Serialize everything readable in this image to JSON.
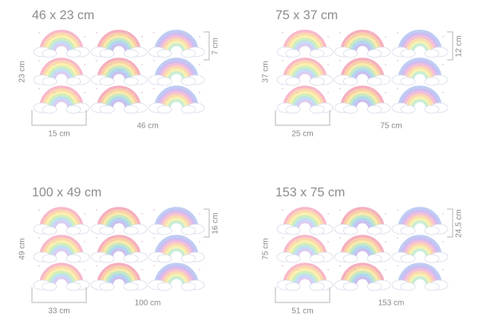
{
  "panels": [
    {
      "title": "46 x 23 cm",
      "total_height": "23 cm",
      "item_height": "7 cm",
      "item_width": "15 cm",
      "total_width": "46 cm"
    },
    {
      "title": "75 x 37 cm",
      "total_height": "37 cm",
      "item_height": "12 cm",
      "item_width": "25 cm",
      "total_width": "75 cm"
    },
    {
      "title": "100 x 49 cm",
      "total_height": "49 cm",
      "item_height": "16 cm",
      "item_width": "33 cm",
      "total_width": "100 cm"
    },
    {
      "title": "153 x 75 cm",
      "total_height": "75 cm",
      "item_height": "24,5 cm",
      "item_width": "51 cm",
      "total_width": "153 cm"
    }
  ]
}
